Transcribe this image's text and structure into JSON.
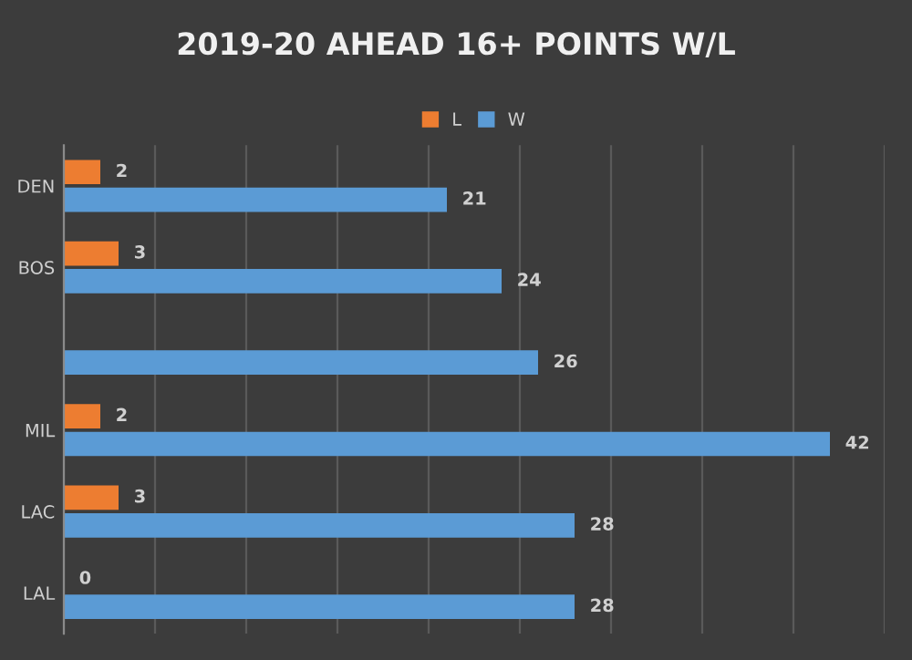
{
  "chart_data": {
    "type": "bar",
    "orientation": "horizontal",
    "title": "2019-20 AHEAD 16+ POINTS W/L",
    "categories": [
      "DEN",
      "BOS",
      null,
      "MIL",
      "LAC",
      "LAL"
    ],
    "series": [
      {
        "name": "L",
        "color": "#ed7d31",
        "values": [
          2,
          3,
          null,
          2,
          3,
          0
        ]
      },
      {
        "name": "W",
        "color": "#5b9bd5",
        "values": [
          21,
          24,
          26,
          42,
          28,
          28
        ]
      }
    ],
    "xlim": [
      0,
      45
    ],
    "xticks": [
      {
        "value": 0,
        "label": null
      },
      {
        "value": 5,
        "label": null
      },
      {
        "value": 10,
        "label": null
      },
      {
        "value": 15,
        "label": null
      },
      {
        "value": 20,
        "label": null
      },
      {
        "value": 25,
        "label": null
      },
      {
        "value": 30,
        "label": null
      },
      {
        "value": 35,
        "label": null
      },
      {
        "value": 40,
        "label": null
      },
      {
        "value": 45,
        "label": null
      }
    ],
    "grid": "x",
    "legend": "top",
    "data_labels": true,
    "tick_labels": "y"
  }
}
